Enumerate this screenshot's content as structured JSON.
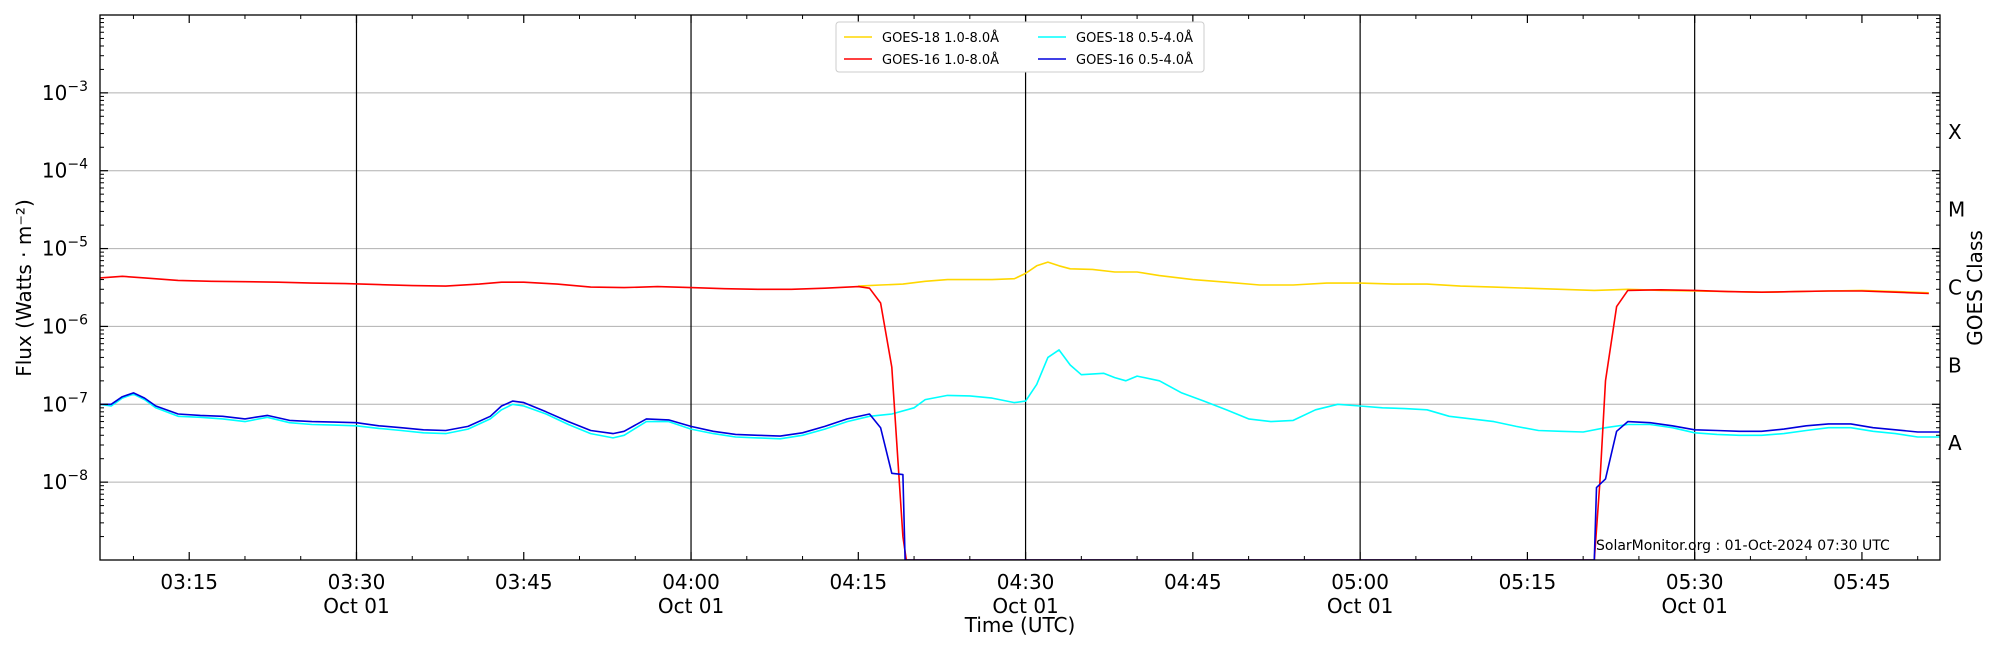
{
  "chart_data": {
    "type": "line",
    "title": "",
    "xlabel": "Time (UTC)",
    "ylabel": "Flux (Watts · m⁻²)",
    "y2label": "GOES Class",
    "yscale": "log",
    "xlim": [
      "03:07",
      "05:52"
    ],
    "ylim": [
      1e-09,
      0.01
    ],
    "grid": "horizontal major + vertical half-hour lines",
    "legend_placement": "top-center",
    "annotation": "SolarMonitor.org : 01-Oct-2024 07:30 UTC",
    "x_ticks": [
      {
        "t": "03:15",
        "label": "03:15",
        "date": ""
      },
      {
        "t": "03:30",
        "label": "03:30",
        "date": "Oct 01"
      },
      {
        "t": "03:45",
        "label": "03:45",
        "date": ""
      },
      {
        "t": "04:00",
        "label": "04:00",
        "date": "Oct 01"
      },
      {
        "t": "04:15",
        "label": "04:15",
        "date": ""
      },
      {
        "t": "04:30",
        "label": "04:30",
        "date": "Oct 01"
      },
      {
        "t": "04:45",
        "label": "04:45",
        "date": ""
      },
      {
        "t": "05:00",
        "label": "05:00",
        "date": "Oct 01"
      },
      {
        "t": "05:15",
        "label": "05:15",
        "date": ""
      },
      {
        "t": "05:30",
        "label": "05:30",
        "date": "Oct 01"
      },
      {
        "t": "05:45",
        "label": "05:45",
        "date": ""
      }
    ],
    "y_ticks": [
      {
        "value": 1e-08,
        "base": "10",
        "exp": "−8"
      },
      {
        "value": 1e-07,
        "base": "10",
        "exp": "−7"
      },
      {
        "value": 1e-06,
        "base": "10",
        "exp": "−6"
      },
      {
        "value": 1e-05,
        "base": "10",
        "exp": "−5"
      },
      {
        "value": 0.0001,
        "base": "10",
        "exp": "−4"
      },
      {
        "value": 0.001,
        "base": "10",
        "exp": "−3"
      }
    ],
    "goes_classes": [
      {
        "label": "A",
        "value": 3.16e-08
      },
      {
        "label": "B",
        "value": 3.16e-07
      },
      {
        "label": "C",
        "value": 3.16e-06
      },
      {
        "label": "M",
        "value": 3.16e-05
      },
      {
        "label": "X",
        "value": 0.000316
      }
    ],
    "series": [
      {
        "name": "GOES-18 1.0-8.0Å",
        "color": "#ffd700",
        "points": [
          [
            "04:15",
            3.3e-06
          ],
          [
            "04:17",
            3.4e-06
          ],
          [
            "04:19",
            3.5e-06
          ],
          [
            "04:21",
            3.8e-06
          ],
          [
            "04:23",
            4e-06
          ],
          [
            "04:25",
            4e-06
          ],
          [
            "04:27",
            4e-06
          ],
          [
            "04:29",
            4.1e-06
          ],
          [
            "04:30",
            4.8e-06
          ],
          [
            "04:31",
            6e-06
          ],
          [
            "04:32",
            6.7e-06
          ],
          [
            "04:33",
            6e-06
          ],
          [
            "04:34",
            5.5e-06
          ],
          [
            "04:36",
            5.4e-06
          ],
          [
            "04:38",
            5e-06
          ],
          [
            "04:40",
            5e-06
          ],
          [
            "04:42",
            4.5e-06
          ],
          [
            "04:45",
            4e-06
          ],
          [
            "04:48",
            3.7e-06
          ],
          [
            "04:51",
            3.4e-06
          ],
          [
            "04:54",
            3.4e-06
          ],
          [
            "04:57",
            3.6e-06
          ],
          [
            "05:00",
            3.6e-06
          ],
          [
            "05:03",
            3.5e-06
          ],
          [
            "05:06",
            3.5e-06
          ],
          [
            "05:09",
            3.3e-06
          ],
          [
            "05:12",
            3.2e-06
          ],
          [
            "05:15",
            3.1e-06
          ],
          [
            "05:18",
            3e-06
          ],
          [
            "05:21",
            2.9e-06
          ],
          [
            "05:24",
            3e-06
          ],
          [
            "05:27",
            2.9e-06
          ],
          [
            "05:30",
            2.85e-06
          ],
          [
            "05:33",
            2.8e-06
          ],
          [
            "05:36",
            2.75e-06
          ],
          [
            "05:39",
            2.8e-06
          ],
          [
            "05:42",
            2.85e-06
          ],
          [
            "05:45",
            2.9e-06
          ],
          [
            "05:48",
            2.8e-06
          ],
          [
            "05:51",
            2.7e-06
          ]
        ]
      },
      {
        "name": "GOES-18 0.5-4.0Å",
        "color": "#00ffff",
        "points": [
          [
            "03:07",
            1e-07
          ],
          [
            "03:08",
            9.5e-08
          ],
          [
            "03:09",
            1.2e-07
          ],
          [
            "03:10",
            1.35e-07
          ],
          [
            "03:11",
            1.15e-07
          ],
          [
            "03:12",
            9e-08
          ],
          [
            "03:14",
            7e-08
          ],
          [
            "03:16",
            6.8e-08
          ],
          [
            "03:18",
            6.5e-08
          ],
          [
            "03:20",
            6e-08
          ],
          [
            "03:22",
            6.8e-08
          ],
          [
            "03:24",
            5.8e-08
          ],
          [
            "03:26",
            5.5e-08
          ],
          [
            "03:28",
            5.4e-08
          ],
          [
            "03:30",
            5.3e-08
          ],
          [
            "03:32",
            4.9e-08
          ],
          [
            "03:34",
            4.6e-08
          ],
          [
            "03:36",
            4.3e-08
          ],
          [
            "03:38",
            4.2e-08
          ],
          [
            "03:40",
            4.8e-08
          ],
          [
            "03:42",
            6.5e-08
          ],
          [
            "03:43",
            8.5e-08
          ],
          [
            "03:44",
            1e-07
          ],
          [
            "03:45",
            9.5e-08
          ],
          [
            "03:47",
            7.5e-08
          ],
          [
            "03:49",
            5.5e-08
          ],
          [
            "03:51",
            4.2e-08
          ],
          [
            "03:53",
            3.7e-08
          ],
          [
            "03:54",
            4e-08
          ],
          [
            "03:56",
            6e-08
          ],
          [
            "03:58",
            6e-08
          ],
          [
            "04:00",
            4.8e-08
          ],
          [
            "04:02",
            4.2e-08
          ],
          [
            "04:04",
            3.8e-08
          ],
          [
            "04:06",
            3.7e-08
          ],
          [
            "04:08",
            3.6e-08
          ],
          [
            "04:10",
            4e-08
          ],
          [
            "04:12",
            4.8e-08
          ],
          [
            "04:14",
            6e-08
          ],
          [
            "04:16",
            7e-08
          ],
          [
            "04:18",
            7.5e-08
          ],
          [
            "04:20",
            9e-08
          ],
          [
            "04:21",
            1.15e-07
          ],
          [
            "04:23",
            1.3e-07
          ],
          [
            "04:25",
            1.28e-07
          ],
          [
            "04:27",
            1.2e-07
          ],
          [
            "04:29",
            1.05e-07
          ],
          [
            "04:30",
            1.1e-07
          ],
          [
            "04:31",
            1.8e-07
          ],
          [
            "04:32",
            4e-07
          ],
          [
            "04:33",
            5e-07
          ],
          [
            "04:34",
            3.2e-07
          ],
          [
            "04:35",
            2.4e-07
          ],
          [
            "04:37",
            2.5e-07
          ],
          [
            "04:38",
            2.2e-07
          ],
          [
            "04:39",
            2e-07
          ],
          [
            "04:40",
            2.3e-07
          ],
          [
            "04:42",
            2e-07
          ],
          [
            "04:44",
            1.4e-07
          ],
          [
            "04:46",
            1.1e-07
          ],
          [
            "04:48",
            8.5e-08
          ],
          [
            "04:50",
            6.5e-08
          ],
          [
            "04:52",
            6e-08
          ],
          [
            "04:54",
            6.2e-08
          ],
          [
            "04:56",
            8.5e-08
          ],
          [
            "04:58",
            1e-07
          ],
          [
            "05:00",
            9.5e-08
          ],
          [
            "05:02",
            9e-08
          ],
          [
            "05:04",
            8.8e-08
          ],
          [
            "05:06",
            8.5e-08
          ],
          [
            "05:08",
            7e-08
          ],
          [
            "05:10",
            6.5e-08
          ],
          [
            "05:12",
            6e-08
          ],
          [
            "05:14",
            5.2e-08
          ],
          [
            "05:16",
            4.6e-08
          ],
          [
            "05:18",
            4.5e-08
          ],
          [
            "05:20",
            4.4e-08
          ],
          [
            "05:22",
            5e-08
          ],
          [
            "05:24",
            5.5e-08
          ],
          [
            "05:26",
            5.5e-08
          ],
          [
            "05:28",
            5e-08
          ],
          [
            "05:30",
            4.3e-08
          ],
          [
            "05:32",
            4.1e-08
          ],
          [
            "05:34",
            4e-08
          ],
          [
            "05:36",
            4e-08
          ],
          [
            "05:38",
            4.2e-08
          ],
          [
            "05:40",
            4.6e-08
          ],
          [
            "05:42",
            5e-08
          ],
          [
            "05:44",
            5e-08
          ],
          [
            "05:46",
            4.5e-08
          ],
          [
            "05:48",
            4.2e-08
          ],
          [
            "05:50",
            3.8e-08
          ],
          [
            "05:52",
            3.8e-08
          ]
        ]
      },
      {
        "name": "GOES-16 1.0-8.0Å",
        "color": "#ff0000",
        "points": [
          [
            "03:07",
            4.2e-06
          ],
          [
            "03:09",
            4.4e-06
          ],
          [
            "03:11",
            4.2e-06
          ],
          [
            "03:14",
            3.9e-06
          ],
          [
            "03:17",
            3.8e-06
          ],
          [
            "03:20",
            3.75e-06
          ],
          [
            "03:23",
            3.7e-06
          ],
          [
            "03:26",
            3.6e-06
          ],
          [
            "03:29",
            3.55e-06
          ],
          [
            "03:32",
            3.45e-06
          ],
          [
            "03:35",
            3.35e-06
          ],
          [
            "03:38",
            3.3e-06
          ],
          [
            "03:41",
            3.5e-06
          ],
          [
            "03:43",
            3.7e-06
          ],
          [
            "03:45",
            3.7e-06
          ],
          [
            "03:48",
            3.5e-06
          ],
          [
            "03:51",
            3.2e-06
          ],
          [
            "03:54",
            3.15e-06
          ],
          [
            "03:57",
            3.25e-06
          ],
          [
            "04:00",
            3.15e-06
          ],
          [
            "04:03",
            3.05e-06
          ],
          [
            "04:06",
            3e-06
          ],
          [
            "04:09",
            3e-06
          ],
          [
            "04:12",
            3.1e-06
          ],
          [
            "04:15",
            3.25e-06
          ],
          [
            "04:16",
            3.1e-06
          ],
          [
            "04:17",
            2e-06
          ],
          [
            "04:18",
            3e-07
          ],
          [
            "04:19",
            2e-09
          ],
          [
            "04:19.3",
            1e-09
          ],
          [
            "05:21",
            1e-09
          ],
          [
            "05:21.5",
            1e-08
          ],
          [
            "05:22",
            2e-07
          ],
          [
            "05:23",
            1.8e-06
          ],
          [
            "05:24",
            2.9e-06
          ],
          [
            "05:27",
            2.95e-06
          ],
          [
            "05:30",
            2.9e-06
          ],
          [
            "05:33",
            2.8e-06
          ],
          [
            "05:36",
            2.75e-06
          ],
          [
            "05:39",
            2.8e-06
          ],
          [
            "05:42",
            2.85e-06
          ],
          [
            "05:45",
            2.85e-06
          ],
          [
            "05:48",
            2.75e-06
          ],
          [
            "05:51",
            2.65e-06
          ]
        ]
      },
      {
        "name": "GOES-16 0.5-4.0Å",
        "color": "#0000dd",
        "points": [
          [
            "03:07",
            1e-07
          ],
          [
            "03:08",
            1e-07
          ],
          [
            "03:09",
            1.25e-07
          ],
          [
            "03:10",
            1.4e-07
          ],
          [
            "03:11",
            1.2e-07
          ],
          [
            "03:12",
            9.5e-08
          ],
          [
            "03:14",
            7.5e-08
          ],
          [
            "03:16",
            7.2e-08
          ],
          [
            "03:18",
            7e-08
          ],
          [
            "03:20",
            6.5e-08
          ],
          [
            "03:22",
            7.2e-08
          ],
          [
            "03:24",
            6.2e-08
          ],
          [
            "03:26",
            6e-08
          ],
          [
            "03:28",
            5.9e-08
          ],
          [
            "03:30",
            5.8e-08
          ],
          [
            "03:32",
            5.3e-08
          ],
          [
            "03:34",
            5e-08
          ],
          [
            "03:36",
            4.7e-08
          ],
          [
            "03:38",
            4.6e-08
          ],
          [
            "03:40",
            5.2e-08
          ],
          [
            "03:42",
            7e-08
          ],
          [
            "03:43",
            9.5e-08
          ],
          [
            "03:44",
            1.1e-07
          ],
          [
            "03:45",
            1.05e-07
          ],
          [
            "03:47",
            8e-08
          ],
          [
            "03:49",
            6e-08
          ],
          [
            "03:51",
            4.6e-08
          ],
          [
            "03:53",
            4.2e-08
          ],
          [
            "03:54",
            4.5e-08
          ],
          [
            "03:56",
            6.5e-08
          ],
          [
            "03:58",
            6.3e-08
          ],
          [
            "04:00",
            5.2e-08
          ],
          [
            "04:02",
            4.5e-08
          ],
          [
            "04:04",
            4.1e-08
          ],
          [
            "04:06",
            4e-08
          ],
          [
            "04:08",
            3.9e-08
          ],
          [
            "04:10",
            4.3e-08
          ],
          [
            "04:12",
            5.2e-08
          ],
          [
            "04:14",
            6.5e-08
          ],
          [
            "04:16",
            7.5e-08
          ],
          [
            "04:17",
            5e-08
          ],
          [
            "04:18",
            1.3e-08
          ],
          [
            "04:19",
            1.25e-08
          ],
          [
            "04:19.2",
            1e-09
          ],
          [
            "05:21",
            1e-09
          ],
          [
            "05:21.2",
            8.5e-09
          ],
          [
            "05:22",
            1.1e-08
          ],
          [
            "05:23",
            4.5e-08
          ],
          [
            "05:24",
            6e-08
          ],
          [
            "05:26",
            5.8e-08
          ],
          [
            "05:28",
            5.3e-08
          ],
          [
            "05:30",
            4.7e-08
          ],
          [
            "05:32",
            4.6e-08
          ],
          [
            "05:34",
            4.5e-08
          ],
          [
            "05:36",
            4.5e-08
          ],
          [
            "05:38",
            4.8e-08
          ],
          [
            "05:40",
            5.3e-08
          ],
          [
            "05:42",
            5.6e-08
          ],
          [
            "05:44",
            5.6e-08
          ],
          [
            "05:46",
            5e-08
          ],
          [
            "05:48",
            4.7e-08
          ],
          [
            "05:50",
            4.4e-08
          ],
          [
            "05:52",
            4.4e-08
          ]
        ]
      }
    ],
    "legend_order": [
      0,
      2,
      1,
      3
    ]
  }
}
